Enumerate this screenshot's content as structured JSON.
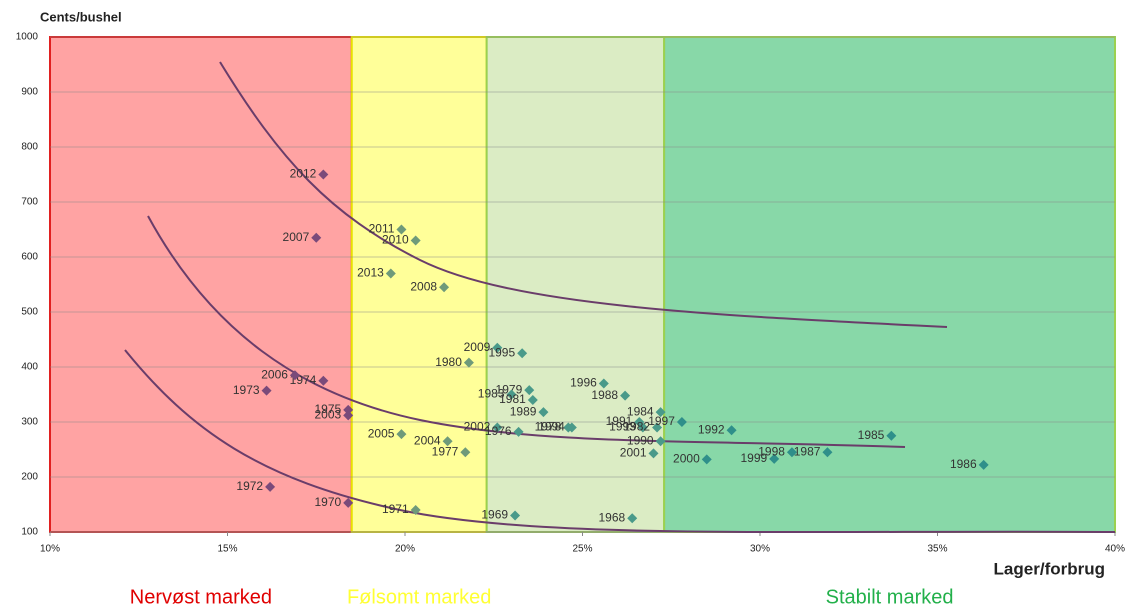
{
  "chart_data": {
    "type": "scatter",
    "y_axis_label": "Cents/bushel",
    "x_axis_label": "Lager/forbrug",
    "xlim": [
      10,
      40
    ],
    "xticks": [
      {
        "value": 10,
        "label": "10%"
      },
      {
        "value": 15,
        "label": "15%"
      },
      {
        "value": 20,
        "label": "20%"
      },
      {
        "value": 25,
        "label": "25%"
      },
      {
        "value": 30,
        "label": "30%"
      },
      {
        "value": 35,
        "label": "35%"
      },
      {
        "value": 40,
        "label": "40%"
      }
    ],
    "ylim": [
      100,
      1000
    ],
    "yticks": [
      100,
      200,
      300,
      400,
      500,
      600,
      700,
      800,
      900,
      1000
    ],
    "grid": true,
    "regions": [
      {
        "label": "Nervøst marked",
        "from": 10,
        "to": 18.5,
        "fill": "#ffa3a3",
        "stroke": "#e02020",
        "label_color": "#e00000",
        "marker_color": "#7a4a7a"
      },
      {
        "label": "Følsomt marked",
        "from": 18.5,
        "to": 22.3,
        "fill": "#ffff99",
        "stroke": "#e8e000",
        "label_color": "#ffff33",
        "marker_color": "#6f9a7a"
      },
      {
        "from": 22.3,
        "to": 27.3,
        "fill": "#dbecc4",
        "stroke": "#9bd050",
        "marker_color": "#4a9a8a"
      },
      {
        "label": "Stabilt marked",
        "from": 27.3,
        "to": 40,
        "fill": "#88d8a8",
        "stroke": "#9bd050",
        "label_color": "#22b04a",
        "marker_color": "#2f8f8a"
      }
    ],
    "point_labels": [
      "2012",
      "2007",
      "2011",
      "2010",
      "2013",
      "2008",
      "2009",
      "1995",
      "1980",
      "1996",
      "1979",
      "1983",
      "1981",
      "1988",
      "1984",
      "1989",
      "1991",
      "1993",
      "1982",
      "1997",
      "1992",
      "2002",
      "1976",
      "1978",
      "1994",
      "1990",
      "2001",
      "2000",
      "1999",
      "1998",
      "1987",
      "1985",
      "1986",
      "2005",
      "2004",
      "1977",
      "1975",
      "2003",
      "1974",
      "2006",
      "1973",
      "1972",
      "1970",
      "1971",
      "1969",
      "1968"
    ],
    "x": [
      17.7,
      17.5,
      19.9,
      20.3,
      19.6,
      21.1,
      22.6,
      23.3,
      21.8,
      25.6,
      23.5,
      23.0,
      23.6,
      26.2,
      27.2,
      23.9,
      26.6,
      26.7,
      27.1,
      27.8,
      29.2,
      22.6,
      23.2,
      24.6,
      24.7,
      27.2,
      27.0,
      28.5,
      30.4,
      30.9,
      31.9,
      33.7,
      36.3,
      19.9,
      21.2,
      21.7,
      18.4,
      18.4,
      17.7,
      16.9,
      16.1,
      16.2,
      18.4,
      20.3,
      23.1,
      26.4
    ],
    "values": [
      750,
      635,
      650,
      630,
      570,
      545,
      435,
      425,
      408,
      370,
      358,
      350,
      340,
      348,
      318,
      318,
      300,
      290,
      290,
      300,
      285,
      290,
      282,
      290,
      290,
      265,
      243,
      232,
      233,
      245,
      245,
      275,
      222,
      278,
      265,
      245,
      322,
      312,
      375,
      385,
      357,
      182,
      153,
      140,
      130,
      125
    ]
  }
}
